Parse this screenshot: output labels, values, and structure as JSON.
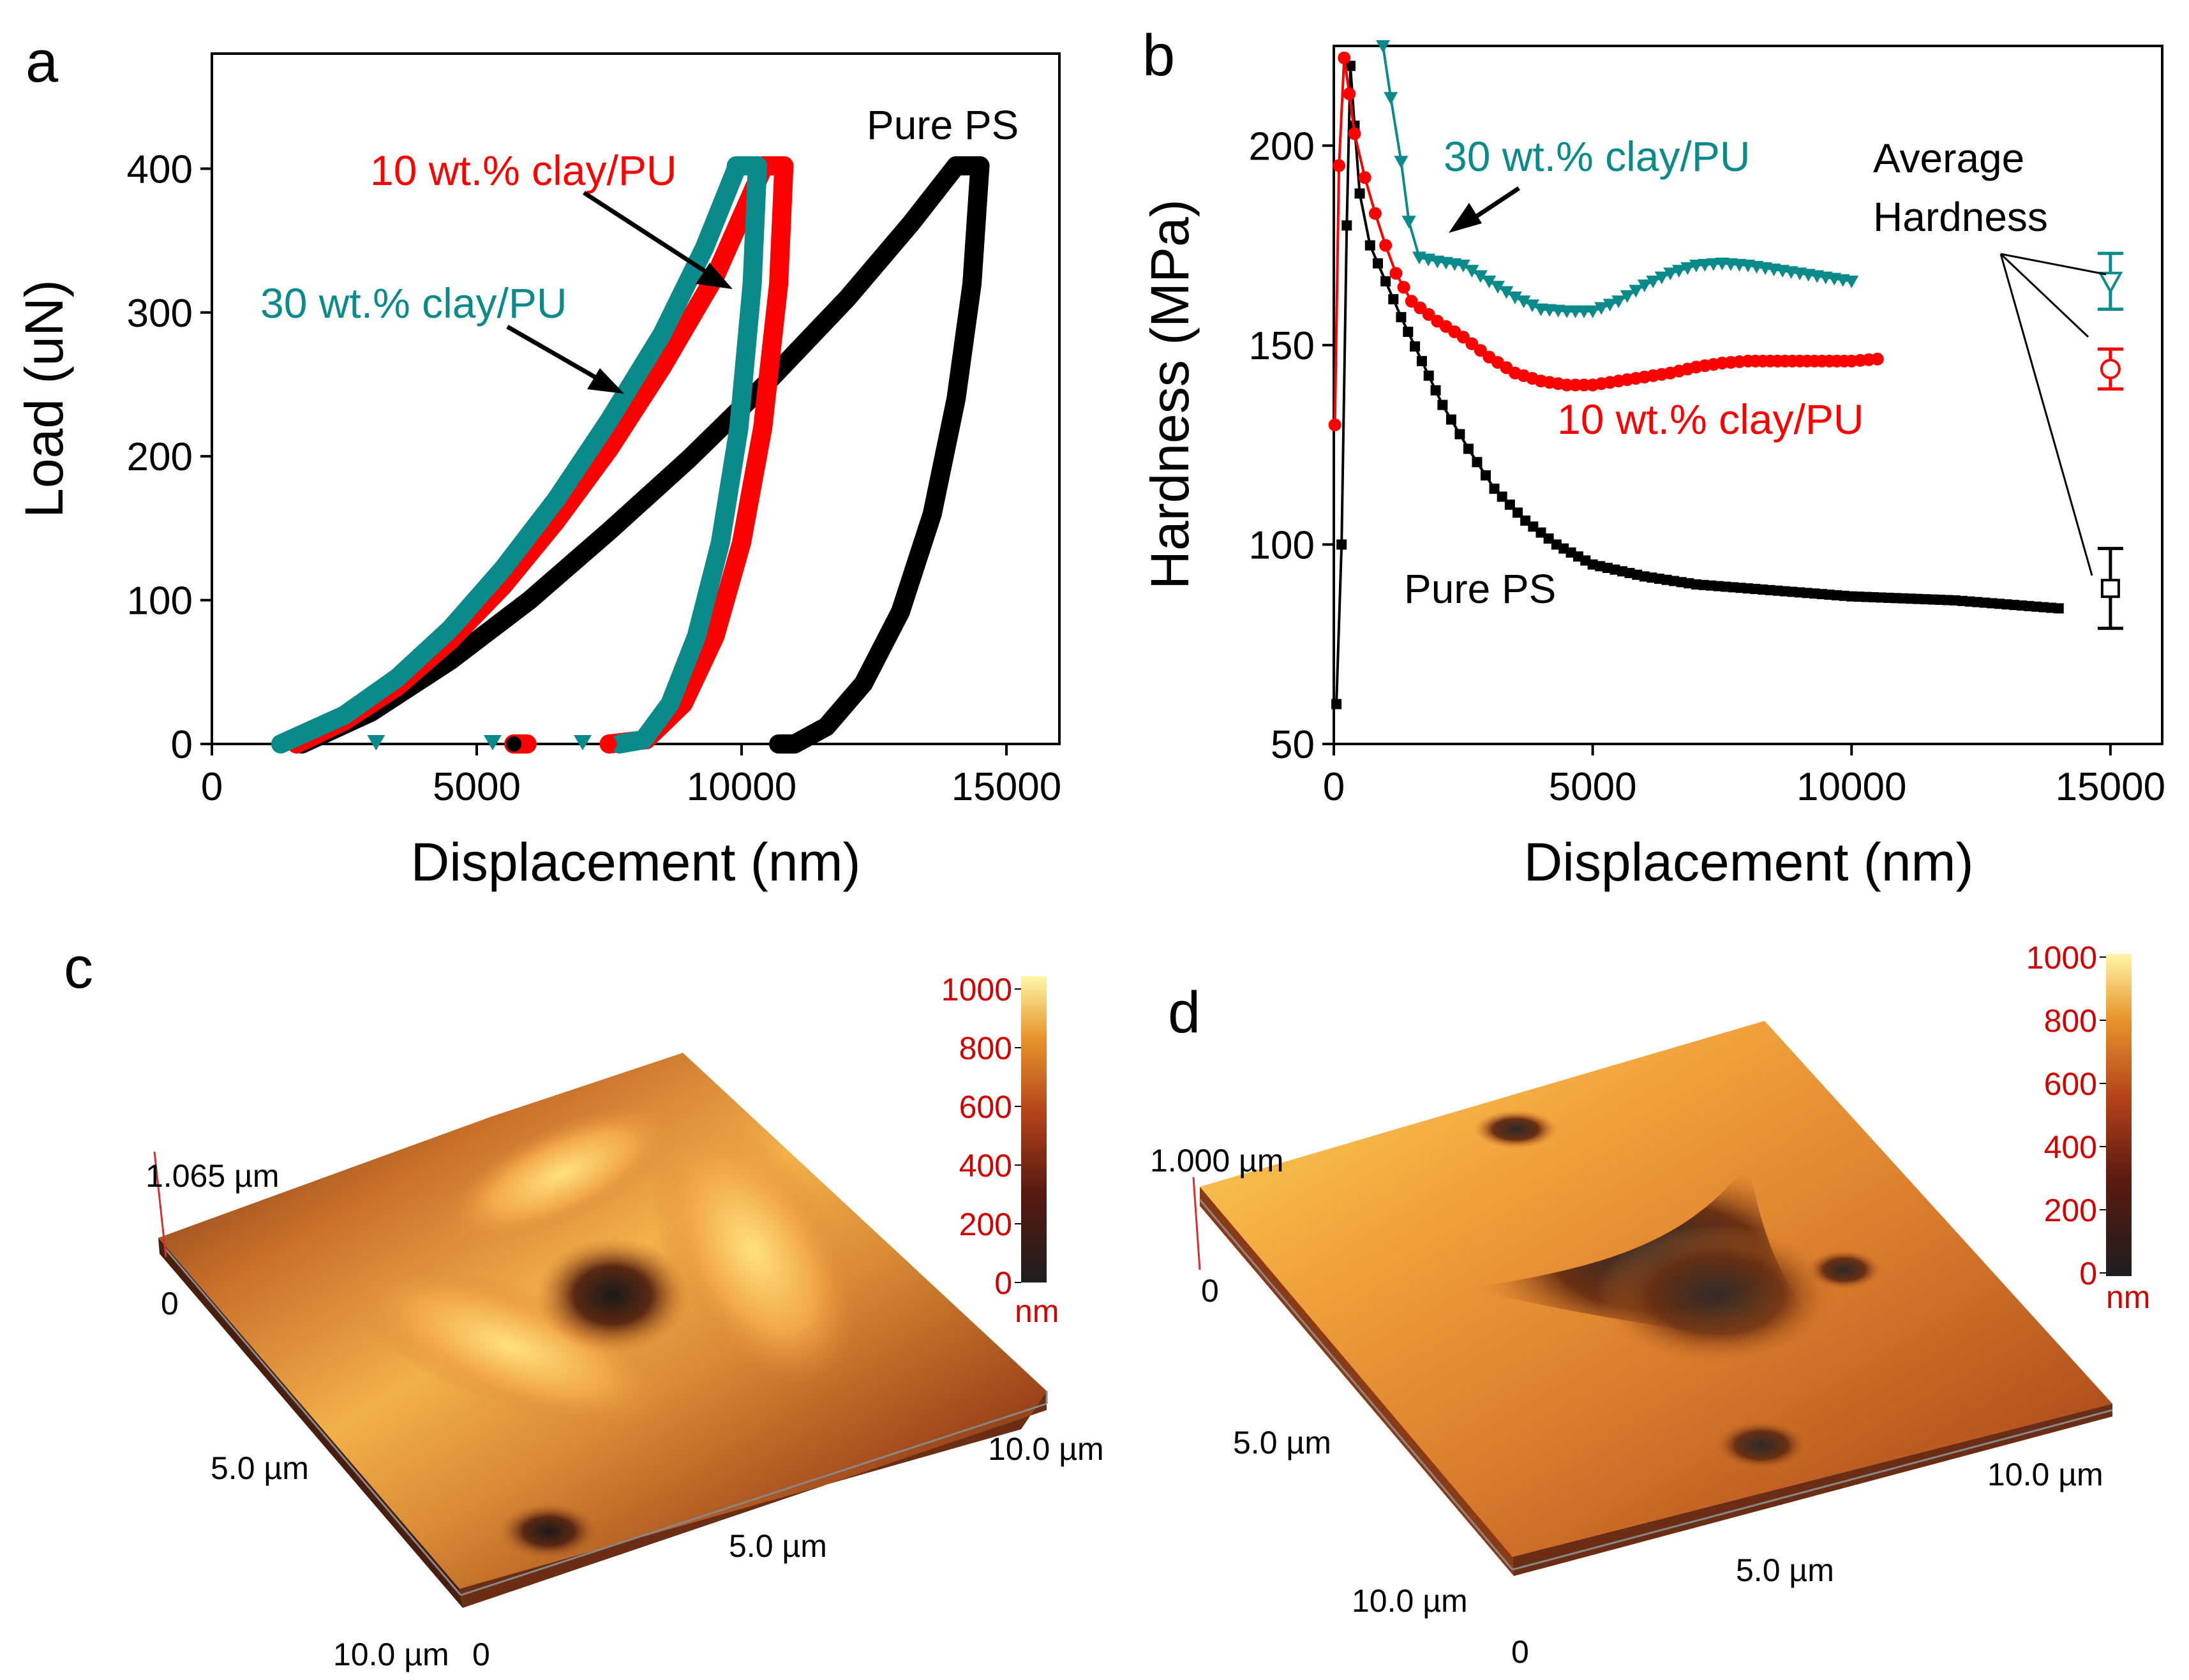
{
  "colors": {
    "teal": "#0a8a8a",
    "red": "#ff0000",
    "black": "#000000",
    "colorbar_label": "#d40000",
    "afm_light": "#ffe27a",
    "afm_mid": "#d8782a",
    "afm_dark": "#3a1a0c"
  },
  "panels": {
    "a": {
      "letter": "a"
    },
    "b": {
      "letter": "b"
    },
    "c": {
      "letter": "c"
    },
    "d": {
      "letter": "d"
    }
  },
  "chart_data": [
    {
      "id": "a",
      "type": "line",
      "xlabel": "Displacement (nm)",
      "ylabel": "Load (uN)",
      "xlim": [
        0,
        16000
      ],
      "ylim": [
        0,
        480
      ],
      "xticks": [
        0,
        5000,
        10000,
        15000
      ],
      "yticks": [
        0,
        100,
        200,
        300,
        400
      ],
      "annotations": [
        "Pure PS",
        "10 wt.% clay/PU",
        "30 wt.% clay/PU"
      ],
      "series": [
        {
          "name": "Pure PS",
          "color": "#000000",
          "loading": [
            [
              1700,
              0
            ],
            [
              3000,
              22
            ],
            [
              4500,
              58
            ],
            [
              6000,
              100
            ],
            [
              7500,
              148
            ],
            [
              9000,
              198
            ],
            [
              10500,
              252
            ],
            [
              12000,
              310
            ],
            [
              13200,
              362
            ],
            [
              14050,
              402
            ]
          ],
          "hold": [
            [
              14050,
              402
            ],
            [
              14500,
              402
            ]
          ],
          "unloading": [
            [
              14500,
              402
            ],
            [
              14350,
              320
            ],
            [
              14050,
              240
            ],
            [
              13600,
              160
            ],
            [
              13000,
              92
            ],
            [
              12300,
              42
            ],
            [
              11600,
              12
            ],
            [
              11000,
              0
            ]
          ],
          "tail": [
            [
              10700,
              0
            ],
            [
              11000,
              0
            ]
          ]
        },
        {
          "name": "10 wt.% clay/PU",
          "color": "#ff0000",
          "loading": [
            [
              1600,
              0
            ],
            [
              2500,
              16
            ],
            [
              3500,
              40
            ],
            [
              4500,
              72
            ],
            [
              5500,
              110
            ],
            [
              6500,
              155
            ],
            [
              7500,
              205
            ],
            [
              8500,
              262
            ],
            [
              9500,
              325
            ],
            [
              10400,
              400
            ]
          ],
          "hold": [
            [
              10400,
              402
            ],
            [
              10800,
              402
            ]
          ],
          "unloading": [
            [
              10800,
              402
            ],
            [
              10700,
              320
            ],
            [
              10400,
              220
            ],
            [
              10000,
              140
            ],
            [
              9500,
              75
            ],
            [
              8900,
              28
            ],
            [
              8200,
              3
            ],
            [
              7500,
              0
            ]
          ],
          "tail": [
            [
              5700,
              0
            ],
            [
              5950,
              0
            ]
          ]
        },
        {
          "name": "30 wt.% clay/PU",
          "color": "#0a8a8a",
          "loading": [
            [
              1300,
              0
            ],
            [
              2500,
              20
            ],
            [
              3500,
              46
            ],
            [
              4500,
              80
            ],
            [
              5500,
              122
            ],
            [
              6500,
              170
            ],
            [
              7500,
              225
            ],
            [
              8500,
              285
            ],
            [
              9300,
              345
            ],
            [
              9900,
              400
            ]
          ],
          "hold": [
            [
              9900,
              402
            ],
            [
              10300,
              402
            ]
          ],
          "unloading": [
            [
              10300,
              402
            ],
            [
              10200,
              320
            ],
            [
              9950,
              220
            ],
            [
              9600,
              140
            ],
            [
              9150,
              75
            ],
            [
              8650,
              28
            ],
            [
              8150,
              3
            ],
            [
              7700,
              0
            ]
          ],
          "markers": [
            [
              3100,
              0
            ],
            [
              5300,
              0
            ],
            [
              7000,
              0
            ]
          ]
        }
      ]
    },
    {
      "id": "b",
      "type": "line",
      "xlabel": "Displacement (nm)",
      "ylabel": "Hardness (MPa)",
      "xlim": [
        0,
        16000
      ],
      "ylim": [
        50,
        225
      ],
      "xticks": [
        0,
        5000,
        10000,
        15000
      ],
      "yticks": [
        50,
        100,
        150,
        200
      ],
      "annotations": [
        "30 wt.% clay/PU",
        "10 wt.% clay/PU",
        "Pure PS",
        "Average",
        "Hardness"
      ],
      "series": [
        {
          "name": "Pure PS",
          "color": "#000000",
          "marker": "square",
          "points": [
            [
              50,
              60
            ],
            [
              150,
              100
            ],
            [
              250,
              180
            ],
            [
              320,
              220
            ],
            [
              400,
              205
            ],
            [
              500,
              188
            ],
            [
              700,
              175
            ],
            [
              1000,
              166
            ],
            [
              1300,
              157
            ],
            [
              1700,
              146
            ],
            [
              2100,
              135
            ],
            [
              2600,
              124
            ],
            [
              3100,
              114
            ],
            [
              3700,
              106
            ],
            [
              4300,
              100
            ],
            [
              5000,
              95
            ],
            [
              6000,
              92
            ],
            [
              7000,
              90
            ],
            [
              8000,
              89
            ],
            [
              9000,
              88
            ],
            [
              10000,
              87
            ],
            [
              11000,
              86.5
            ],
            [
              12000,
              86
            ],
            [
              13000,
              85
            ],
            [
              14000,
              84
            ]
          ],
          "average": {
            "x": 15000,
            "value": 89,
            "err": 10
          }
        },
        {
          "name": "10 wt.% clay/PU",
          "color": "#ff0000",
          "marker": "circle",
          "points": [
            [
              20,
              130
            ],
            [
              100,
              195
            ],
            [
              200,
              222
            ],
            [
              300,
              213
            ],
            [
              400,
              203
            ],
            [
              600,
              192
            ],
            [
              800,
              183
            ],
            [
              1000,
              175
            ],
            [
              1200,
              168
            ],
            [
              1500,
              161
            ],
            [
              2000,
              156
            ],
            [
              2500,
              152
            ],
            [
              3000,
              147
            ],
            [
              3500,
              143
            ],
            [
              4000,
              141
            ],
            [
              4500,
              140
            ],
            [
              5000,
              140
            ],
            [
              5500,
              141
            ],
            [
              6000,
              142
            ],
            [
              6500,
              143
            ],
            [
              7000,
              144.5
            ],
            [
              7500,
              145.5
            ],
            [
              8000,
              146
            ],
            [
              9000,
              146
            ],
            [
              10000,
              146
            ],
            [
              10500,
              146.5
            ]
          ],
          "average": {
            "x": 15000,
            "value": 144,
            "err": 5
          }
        },
        {
          "name": "30 wt.% clay/PU",
          "color": "#0a8a8a",
          "marker": "triangle-down",
          "points": [
            [
              950,
              225
            ],
            [
              1100,
              212
            ],
            [
              1300,
              196
            ],
            [
              1450,
              181
            ],
            [
              1650,
              172
            ],
            [
              2000,
              171
            ],
            [
              2500,
              170
            ],
            [
              3000,
              166
            ],
            [
              3500,
              162
            ],
            [
              4000,
              159
            ],
            [
              4500,
              158.5
            ],
            [
              5000,
              158.5
            ],
            [
              5500,
              161
            ],
            [
              6000,
              165
            ],
            [
              6500,
              168
            ],
            [
              7000,
              170
            ],
            [
              7500,
              170.5
            ],
            [
              8000,
              170
            ],
            [
              8500,
              169
            ],
            [
              9000,
              168
            ],
            [
              9500,
              167
            ],
            [
              10000,
              166
            ]
          ],
          "average": {
            "x": 15000,
            "value": 166,
            "err": 7
          }
        }
      ]
    }
  ],
  "afm": [
    {
      "id": "c",
      "z_label": "1.065 µm",
      "origin_label": "0",
      "axis_labels": [
        "5.0 µm",
        "10.0 µm",
        "5.0 µm",
        "10.0 µm",
        "0"
      ],
      "colorbar": {
        "ticks": [
          "1000",
          "800",
          "600",
          "400",
          "200",
          "0"
        ],
        "unit": "nm"
      }
    },
    {
      "id": "d",
      "z_label": "1.000 µm",
      "origin_label": "0",
      "axis_labels": [
        "5.0 µm",
        "10.0 µm",
        "5.0 µm",
        "10.0 µm",
        "0"
      ],
      "colorbar": {
        "ticks": [
          "1000",
          "800",
          "600",
          "400",
          "200",
          "0"
        ],
        "unit": "nm"
      }
    }
  ]
}
